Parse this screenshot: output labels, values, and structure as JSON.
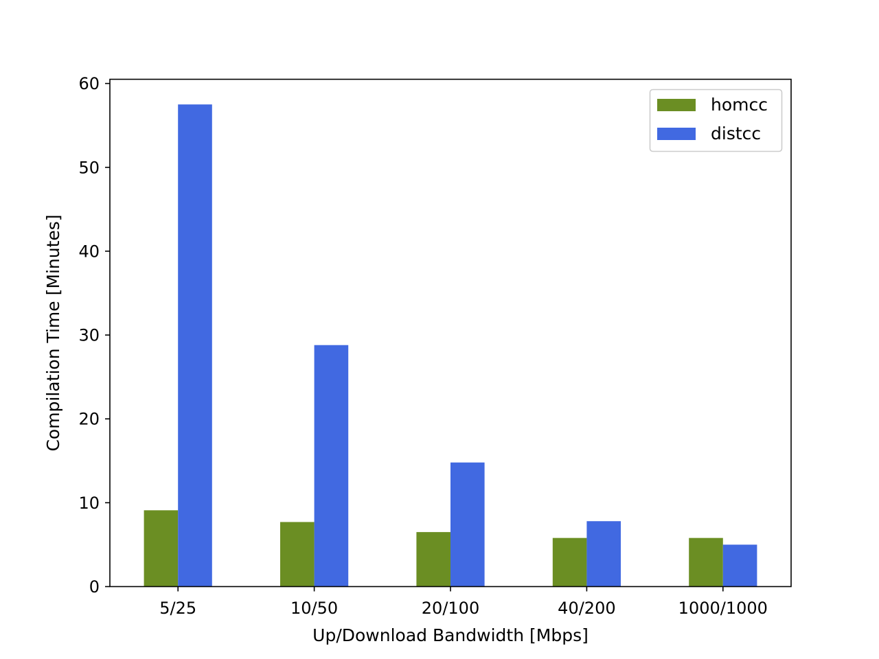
{
  "chart_data": {
    "type": "bar",
    "categories": [
      "5/25",
      "10/50",
      "20/100",
      "40/200",
      "1000/1000"
    ],
    "series": [
      {
        "name": "homcc",
        "values": [
          9.1,
          7.7,
          6.5,
          5.8,
          5.8
        ],
        "color": "#6b8e23"
      },
      {
        "name": "distcc",
        "values": [
          57.5,
          28.8,
          14.8,
          7.8,
          5.0
        ],
        "color": "#4169e1"
      }
    ],
    "title": "",
    "xlabel": "Up/Download Bandwidth [Mbps]",
    "ylabel": "Compilation Time [Minutes]",
    "ylim": [
      0,
      60.5
    ],
    "yticks": [
      0,
      10,
      20,
      30,
      40,
      50,
      60
    ],
    "grid": false,
    "legend_position": "top-right"
  }
}
